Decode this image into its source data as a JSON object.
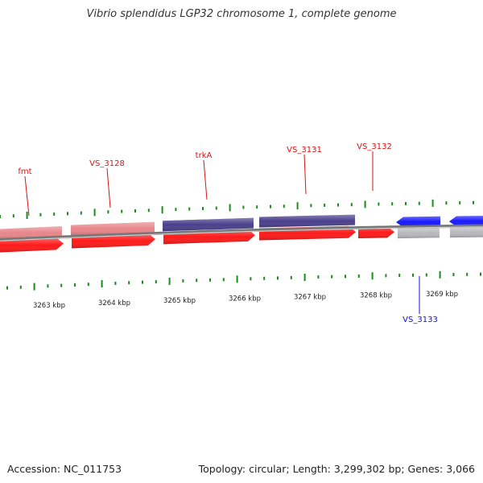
{
  "title": "Vibrio splendidus LGP32 chromosome 1, complete genome",
  "footer": {
    "accession": "Accession: NC_011753",
    "stats": "Topology: circular; Length: 3,299,302 bp; Genes: 3,066"
  },
  "colors": {
    "forward_cds": "#ff1a1a",
    "forward_gene": "#e8868a",
    "reverse_cds": "#1a1aff",
    "reverse_gene": "#b8b8bc",
    "named_feature": "#4a3f8c",
    "ticks": "#1a8a1a",
    "label_forward": "#dd1111",
    "label_reverse": "#1111dd",
    "backbone": "#888888"
  },
  "ruler_labels": [
    "3263 kbp",
    "3264 kbp",
    "3265 kbp",
    "3266 kbp",
    "3267 kbp",
    "3268 kbp",
    "3269 kbp"
  ],
  "gene_labels": [
    {
      "text": "fmt",
      "strand": "forward"
    },
    {
      "text": "VS_3128",
      "strand": "forward"
    },
    {
      "text": "trkA",
      "strand": "forward"
    },
    {
      "text": "VS_3131",
      "strand": "forward"
    },
    {
      "text": "VS_3132",
      "strand": "forward"
    },
    {
      "text": "VS_3133",
      "strand": "reverse"
    }
  ]
}
